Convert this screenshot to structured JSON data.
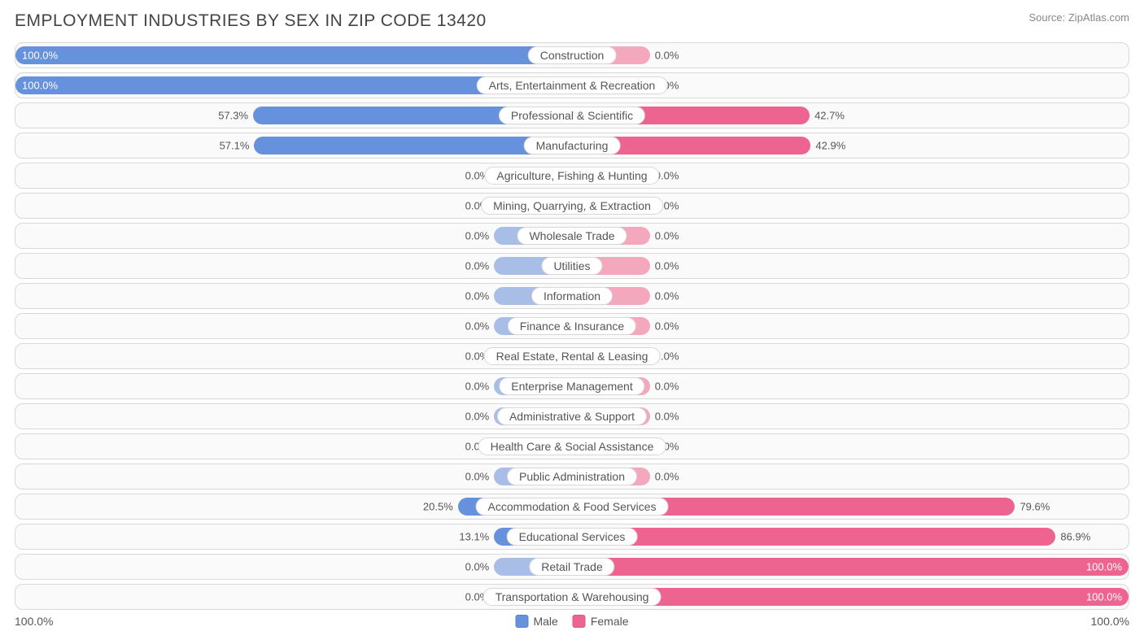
{
  "title": "EMPLOYMENT INDUSTRIES BY SEX IN ZIP CODE 13420",
  "source": "Source: ZipAtlas.com",
  "chart": {
    "type": "diverging-bar",
    "background_color": "#ffffff",
    "row_bg": "#fafafa",
    "row_border": "#d8d8d8",
    "male_color_strong": "#6691dc",
    "male_color_light": "#a8bee6",
    "female_color_strong": "#ee6490",
    "female_color_light": "#f4a8bd",
    "text_color": "#555555",
    "label_fontsize": 14,
    "value_fontsize": 13,
    "min_bar_pct": 14,
    "axis_left": "100.0%",
    "axis_right": "100.0%",
    "legend": {
      "male": "Male",
      "female": "Female"
    },
    "rows": [
      {
        "label": "Construction",
        "male": 100.0,
        "female": 0.0,
        "male_label": "100.0%",
        "female_label": "0.0%"
      },
      {
        "label": "Arts, Entertainment & Recreation",
        "male": 100.0,
        "female": 0.0,
        "male_label": "100.0%",
        "female_label": "0.0%"
      },
      {
        "label": "Professional & Scientific",
        "male": 57.3,
        "female": 42.7,
        "male_label": "57.3%",
        "female_label": "42.7%"
      },
      {
        "label": "Manufacturing",
        "male": 57.1,
        "female": 42.9,
        "male_label": "57.1%",
        "female_label": "42.9%"
      },
      {
        "label": "Agriculture, Fishing & Hunting",
        "male": 0.0,
        "female": 0.0,
        "male_label": "0.0%",
        "female_label": "0.0%"
      },
      {
        "label": "Mining, Quarrying, & Extraction",
        "male": 0.0,
        "female": 0.0,
        "male_label": "0.0%",
        "female_label": "0.0%"
      },
      {
        "label": "Wholesale Trade",
        "male": 0.0,
        "female": 0.0,
        "male_label": "0.0%",
        "female_label": "0.0%"
      },
      {
        "label": "Utilities",
        "male": 0.0,
        "female": 0.0,
        "male_label": "0.0%",
        "female_label": "0.0%"
      },
      {
        "label": "Information",
        "male": 0.0,
        "female": 0.0,
        "male_label": "0.0%",
        "female_label": "0.0%"
      },
      {
        "label": "Finance & Insurance",
        "male": 0.0,
        "female": 0.0,
        "male_label": "0.0%",
        "female_label": "0.0%"
      },
      {
        "label": "Real Estate, Rental & Leasing",
        "male": 0.0,
        "female": 0.0,
        "male_label": "0.0%",
        "female_label": "0.0%"
      },
      {
        "label": "Enterprise Management",
        "male": 0.0,
        "female": 0.0,
        "male_label": "0.0%",
        "female_label": "0.0%"
      },
      {
        "label": "Administrative & Support",
        "male": 0.0,
        "female": 0.0,
        "male_label": "0.0%",
        "female_label": "0.0%"
      },
      {
        "label": "Health Care & Social Assistance",
        "male": 0.0,
        "female": 0.0,
        "male_label": "0.0%",
        "female_label": "0.0%"
      },
      {
        "label": "Public Administration",
        "male": 0.0,
        "female": 0.0,
        "male_label": "0.0%",
        "female_label": "0.0%"
      },
      {
        "label": "Accommodation & Food Services",
        "male": 20.5,
        "female": 79.6,
        "male_label": "20.5%",
        "female_label": "79.6%"
      },
      {
        "label": "Educational Services",
        "male": 13.1,
        "female": 86.9,
        "male_label": "13.1%",
        "female_label": "86.9%"
      },
      {
        "label": "Retail Trade",
        "male": 0.0,
        "female": 100.0,
        "male_label": "0.0%",
        "female_label": "100.0%"
      },
      {
        "label": "Transportation & Warehousing",
        "male": 0.0,
        "female": 100.0,
        "male_label": "0.0%",
        "female_label": "100.0%"
      }
    ]
  }
}
